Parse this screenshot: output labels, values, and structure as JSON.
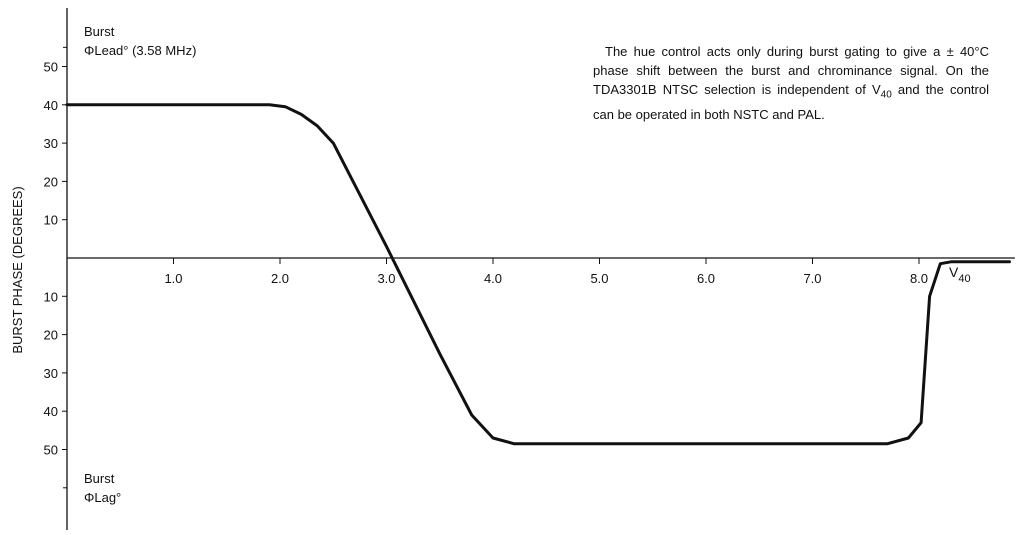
{
  "chart_data": {
    "type": "line",
    "ylabel": "BURST PHASE (DEGREES)",
    "lead_label_line1": "Burst",
    "lead_label_line2": "ΦLead° (3.58 MHz)",
    "lag_label_line1": "Burst",
    "lag_label_line2": "ΦLag°",
    "xlabel_main": "V",
    "xlabel_sub": "40",
    "x_ticks": [
      "1.0",
      "2.0",
      "3.0",
      "4.0",
      "5.0",
      "6.0",
      "7.0",
      "8.0"
    ],
    "x_tick_values": [
      1,
      2,
      3,
      4,
      5,
      6,
      7,
      8
    ],
    "y_upper_ticks": [
      "50",
      "40",
      "30",
      "20",
      "10"
    ],
    "y_upper_values": [
      50,
      40,
      30,
      20,
      10
    ],
    "y_lower_ticks": [
      "10",
      "20",
      "30",
      "40",
      "50"
    ],
    "y_lower_values": [
      -10,
      -20,
      -30,
      -40,
      -50
    ],
    "xlim": [
      0,
      8.9
    ],
    "ylim": [
      -60,
      60
    ],
    "series": [
      {
        "x": [
          0,
          1.9,
          2.05,
          2.2,
          2.35,
          2.5,
          3.0,
          3.5,
          3.8,
          4.0,
          4.2,
          5.0,
          6.0,
          7.0,
          7.7,
          7.9,
          8.02,
          8.1,
          8.2,
          8.3,
          8.5,
          8.85
        ],
        "y": [
          40,
          40,
          39.5,
          37.5,
          34.5,
          30,
          3,
          -25,
          -41,
          -47,
          -48.5,
          -48.5,
          -48.5,
          -48.5,
          -48.5,
          -47,
          -43,
          -10,
          -1.5,
          -1,
          -1,
          -1
        ]
      }
    ],
    "grid": false
  },
  "note": {
    "text_part1": "The hue control acts only during burst gating to give a ± 40°C phase shift between the burst and chrominance signal. On the TDA3301B NTSC selection is independent of V",
    "text_sub": "40",
    "text_part2": " and the control can be operated in both NSTC and PAL."
  }
}
